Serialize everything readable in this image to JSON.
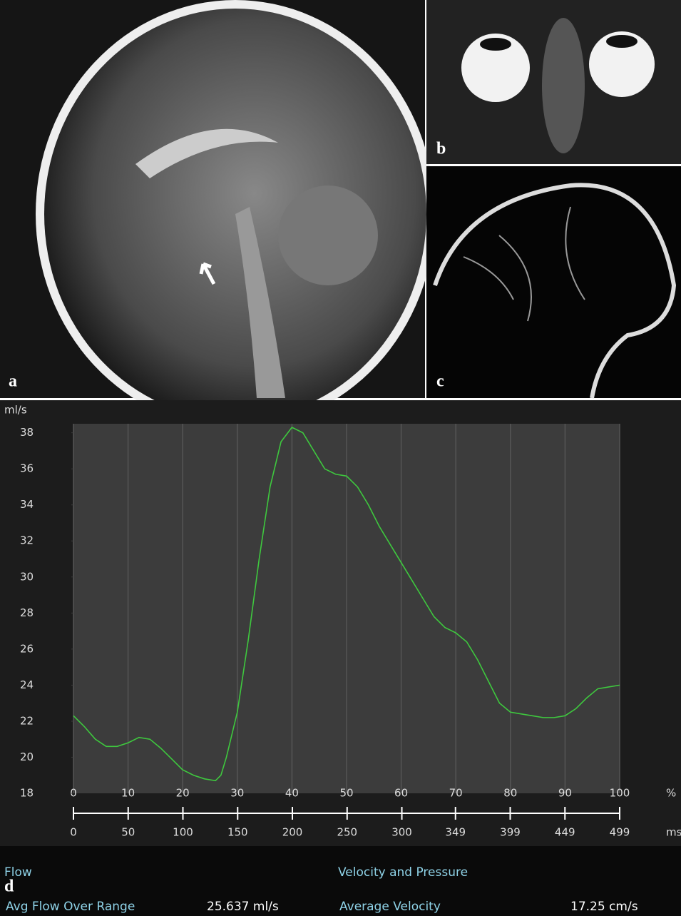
{
  "panels": {
    "a": "a",
    "b": "b",
    "c": "c",
    "d": "d"
  },
  "chart_data": {
    "type": "line",
    "y_label": "ml/s",
    "x_unit": "%",
    "x2_unit": "ms",
    "x": [
      0,
      2,
      4,
      6,
      8,
      10,
      12,
      14,
      16,
      18,
      20,
      22,
      24,
      26,
      27,
      28,
      30,
      32,
      34,
      36,
      38,
      40,
      42,
      44,
      46,
      48,
      50,
      52,
      54,
      56,
      58,
      60,
      62,
      64,
      66,
      68,
      70,
      72,
      74,
      76,
      78,
      80,
      82,
      84,
      86,
      88,
      90,
      92,
      94,
      96,
      98,
      100
    ],
    "values": [
      22.3,
      21.7,
      21.0,
      20.6,
      20.6,
      20.8,
      21.1,
      21.0,
      20.5,
      19.9,
      19.3,
      19.0,
      18.8,
      18.7,
      19.0,
      20.0,
      22.5,
      26.5,
      31.0,
      35.0,
      37.5,
      38.3,
      38.0,
      37.0,
      36.0,
      35.7,
      35.6,
      35.0,
      34.0,
      32.8,
      31.8,
      30.8,
      29.8,
      28.8,
      27.8,
      27.2,
      26.9,
      26.4,
      25.4,
      24.2,
      23.0,
      22.5,
      22.4,
      22.3,
      22.2,
      22.2,
      22.3,
      22.7,
      23.3,
      23.8,
      23.9,
      24.0
    ],
    "color": "#3ec83e",
    "xlim": [
      0,
      100
    ],
    "xticks": [
      0,
      10,
      20,
      30,
      40,
      50,
      60,
      70,
      80,
      90,
      100
    ],
    "x2lim": [
      0,
      499
    ],
    "x2ticks": [
      0,
      50,
      100,
      150,
      200,
      250,
      300,
      349,
      399,
      449,
      499
    ],
    "ylim": [
      18,
      38.5
    ],
    "yticks": [
      18,
      20,
      22,
      24,
      26,
      28,
      30,
      32,
      34,
      36,
      38
    ],
    "grid": true
  },
  "stats": {
    "flow_heading": "Flow",
    "velocity_heading": "Velocity and Pressure",
    "avg_flow_label": "Avg Flow Over Range",
    "avg_flow_value": "25.637 ml/s",
    "avg_velocity_label": "Average Velocity",
    "avg_velocity_value": "17.25 cm/s"
  }
}
